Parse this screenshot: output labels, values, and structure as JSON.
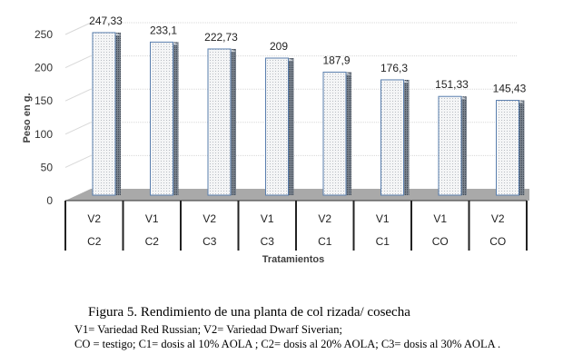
{
  "chart_data": {
    "type": "bar",
    "categories": [
      [
        "V2",
        "C2"
      ],
      [
        "V1",
        "C2"
      ],
      [
        "V2",
        "C3"
      ],
      [
        "V1",
        "C3"
      ],
      [
        "V2",
        "C1"
      ],
      [
        "V1",
        "C1"
      ],
      [
        "V1",
        "CO"
      ],
      [
        "V2",
        "CO"
      ]
    ],
    "values": [
      247.33,
      233.1,
      222.73,
      209,
      187.9,
      176.3,
      151.33,
      145.43
    ],
    "data_labels": [
      "247,33",
      "233,1",
      "222,73",
      "209",
      "187,9",
      "176,3",
      "151,33",
      "145,43"
    ],
    "ylabel": "Peso en g.",
    "xlabel": "Tratamientos",
    "ylim": [
      0,
      250
    ],
    "yticks": [
      "0",
      "50",
      "100",
      "150",
      "200",
      "250"
    ],
    "grid": true,
    "bar_color": "#e4e8ec",
    "bar_edge": "#5a7fae"
  },
  "caption": {
    "title": "Figura 5. Rendimiento de una planta de col rizada/ cosecha",
    "note1": "V1= Variedad Red Russian; V2= Variedad Dwarf Siverian;",
    "note2": "CO = testigo; C1= dosis al 10% AOLA ; C2= dosis al 20% AOLA; C3= dosis al 30% AOLA ."
  }
}
